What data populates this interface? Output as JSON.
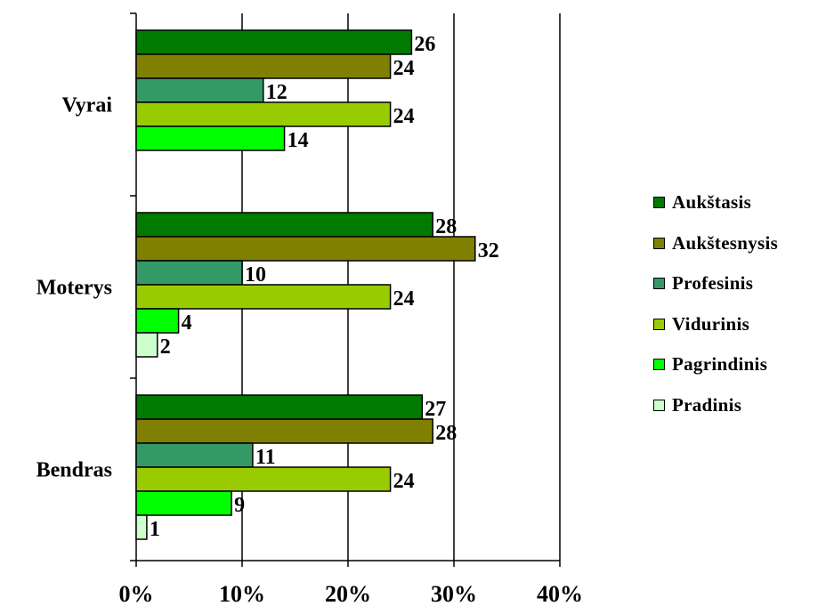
{
  "chart_data": {
    "type": "bar",
    "orientation": "horizontal",
    "categories": [
      "Vyrai",
      "Moterys",
      "Bendras"
    ],
    "series": [
      {
        "name": "Aukštasis",
        "color": "#007a00",
        "values": [
          26,
          28,
          27
        ]
      },
      {
        "name": "Aukštesnysis",
        "color": "#808000",
        "values": [
          24,
          32,
          28
        ]
      },
      {
        "name": "Profesinis",
        "color": "#339966",
        "values": [
          12,
          10,
          11
        ]
      },
      {
        "name": "Vidurinis",
        "color": "#99cc00",
        "values": [
          24,
          24,
          24
        ]
      },
      {
        "name": "Pagrindinis",
        "color": "#00ff00",
        "values": [
          14,
          4,
          9
        ]
      },
      {
        "name": "Pradinis",
        "color": "#ccffcc",
        "values": [
          null,
          2,
          1
        ]
      }
    ],
    "x_ticks": [
      "0%",
      "10%",
      "20%",
      "30%",
      "40%"
    ],
    "xlim": [
      0,
      40
    ],
    "value_labels": true,
    "grid": "vertical major",
    "legend_position": "right"
  }
}
